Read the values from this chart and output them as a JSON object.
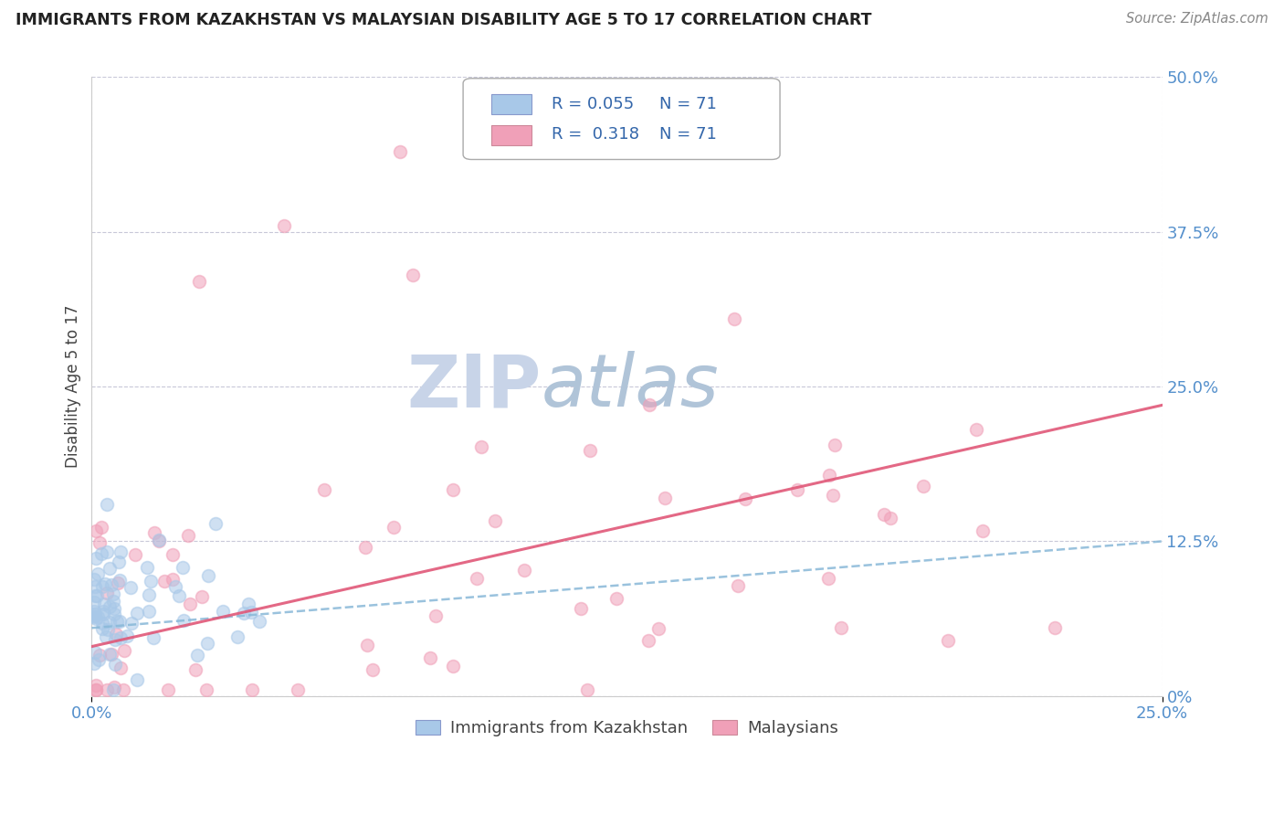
{
  "title": "IMMIGRANTS FROM KAZAKHSTAN VS MALAYSIAN DISABILITY AGE 5 TO 17 CORRELATION CHART",
  "source_text": "Source: ZipAtlas.com",
  "ylabel": "Disability Age 5 to 17",
  "xlim": [
    0.0,
    0.25
  ],
  "ylim": [
    0.0,
    0.5
  ],
  "xtick_vals": [
    0.0,
    0.25
  ],
  "xtick_labels": [
    "0.0%",
    "25.0%"
  ],
  "ytick_vals": [
    0.0,
    0.125,
    0.25,
    0.375,
    0.5
  ],
  "ytick_labels": [
    "0%",
    "12.5%",
    "25.0%",
    "37.5%",
    "50.0%"
  ],
  "r_kazakhstan": 0.055,
  "r_malaysian": 0.318,
  "n_kazakhstan": 71,
  "n_malaysian": 71,
  "color_kazakhstan": "#a8c8e8",
  "color_malaysian": "#f0a0b8",
  "color_trendline_kazakhstan": "#88b8d8",
  "color_trendline_malaysian": "#e05878",
  "background_color": "#ffffff",
  "grid_color": "#c8c8d8",
  "title_color": "#222222",
  "axis_label_color": "#444444",
  "tick_color": "#5590cc",
  "legend_r_color": "#3366aa",
  "legend_n_color": "#3366aa",
  "watermark_zip_color": "#c8d4e8",
  "watermark_atlas_color": "#b0c4d8",
  "source_color": "#888888",
  "trendline_kaz_start_y": 0.055,
  "trendline_kaz_end_y": 0.125,
  "trendline_mal_start_y": 0.04,
  "trendline_mal_end_y": 0.235,
  "scatter_size": 100,
  "scatter_alpha": 0.55,
  "scatter_linewidth": 1.2
}
